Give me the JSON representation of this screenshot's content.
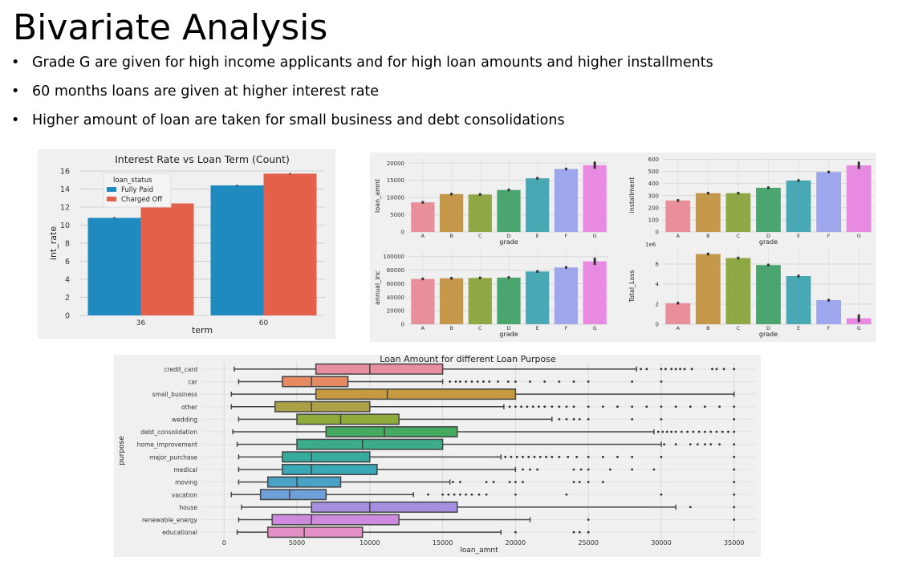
{
  "slide": {
    "title": "Bivariate Analysis",
    "bullets": [
      "Grade G are given for high income applicants and for high loan amounts and higher installments",
      "60 months loans are given at higher interest rate",
      "Higher amount of loan are taken for small business and debt consolidations"
    ],
    "bullet_glyph": "•"
  },
  "chart_data": [
    {
      "id": "interest",
      "type": "bar",
      "title": "Interest Rate vs Loan Term (Count)",
      "xlabel": "term",
      "ylabel": "int_rate",
      "categories": [
        "36",
        "60"
      ],
      "ylim": [
        0,
        16
      ],
      "yticks": [
        0,
        2,
        4,
        6,
        8,
        10,
        12,
        14,
        16
      ],
      "legend_title": "loan_status",
      "legend_position": "top-left",
      "series": [
        {
          "name": "Fully Paid",
          "color": "#1f8ac0",
          "values": [
            10.8,
            14.4
          ]
        },
        {
          "name": "Charged Off",
          "color": "#e5604a",
          "values": [
            12.4,
            15.7
          ]
        }
      ]
    },
    {
      "id": "loan_amnt",
      "type": "bar",
      "xlabel": "grade",
      "ylabel": "loan_amnt",
      "categories": [
        "A",
        "B",
        "C",
        "D",
        "E",
        "F",
        "G"
      ],
      "values": [
        8600,
        11000,
        10900,
        12200,
        15600,
        18300,
        19400
      ],
      "ylim": [
        0,
        21000
      ],
      "yticks": [
        0,
        5000,
        10000,
        15000,
        20000
      ]
    },
    {
      "id": "installment",
      "type": "bar",
      "xlabel": "grade",
      "ylabel": "installment",
      "categories": [
        "A",
        "B",
        "C",
        "D",
        "E",
        "F",
        "G"
      ],
      "values": [
        260,
        320,
        320,
        365,
        425,
        495,
        550
      ],
      "ylim": [
        0,
        610
      ],
      "yticks": [
        0,
        100,
        200,
        300,
        400,
        500,
        600
      ]
    },
    {
      "id": "annual_inc",
      "type": "bar",
      "xlabel": "grade",
      "ylabel": "annual_inc",
      "categories": [
        "A",
        "B",
        "C",
        "D",
        "E",
        "F",
        "G"
      ],
      "values": [
        67000,
        68000,
        68500,
        69000,
        78000,
        84000,
        93000
      ],
      "ylim": [
        0,
        108000
      ],
      "yticks": [
        0,
        20000,
        40000,
        60000,
        80000,
        100000
      ]
    },
    {
      "id": "total_loss",
      "type": "bar",
      "xlabel": "grade",
      "ylabel": "Total_Loss",
      "offset_label": "1e6",
      "categories": [
        "A",
        "B",
        "C",
        "D",
        "E",
        "F",
        "G"
      ],
      "values": [
        2.1,
        7.0,
        6.6,
        5.9,
        4.8,
        2.4,
        0.6
      ],
      "ylim": [
        0,
        7.6
      ],
      "yticks": [
        0,
        2,
        4,
        6
      ],
      "ytick_labels": [
        "0",
        "2",
        "4",
        "6"
      ]
    },
    {
      "id": "purpose",
      "type": "box",
      "title": "Loan Amount for different Loan Purpose",
      "xlabel": "loan_amnt",
      "ylabel": "purpose",
      "xlim": [
        -1500,
        36500
      ],
      "xticks": [
        0,
        5000,
        10000,
        15000,
        20000,
        25000,
        30000,
        35000
      ],
      "categories": [
        "credit_card",
        "car",
        "small_business",
        "other",
        "wedding",
        "debt_consolidation",
        "home_improvement",
        "major_purchase",
        "medical",
        "moving",
        "vacation",
        "house",
        "renewable_energy",
        "educational"
      ],
      "boxes": [
        {
          "min": 700,
          "q1": 6300,
          "median": 10000,
          "q3": 15000,
          "max": 28300,
          "color": "#e78ea0",
          "outliers": [
            28600,
            29000,
            30000,
            30300,
            30700,
            31000,
            31300,
            31600,
            32100,
            33500,
            33800,
            34300,
            35000
          ]
        },
        {
          "min": 1000,
          "q1": 4000,
          "median": 6000,
          "q3": 8500,
          "max": 15000,
          "color": "#e58a63",
          "outliers": [
            15500,
            15900,
            16200,
            16600,
            17000,
            17400,
            17800,
            18200,
            18800,
            19500,
            20000,
            21000,
            22000,
            23000,
            24000,
            25000,
            28000,
            30000
          ]
        },
        {
          "min": 500,
          "q1": 6300,
          "median": 11200,
          "q3": 20000,
          "max": 35000,
          "color": "#c59a3e",
          "outliers": []
        },
        {
          "min": 500,
          "q1": 3500,
          "median": 6000,
          "q3": 10000,
          "max": 19200,
          "color": "#aba046",
          "outliers": [
            19600,
            20000,
            20400,
            20800,
            21200,
            21600,
            22000,
            22500,
            23000,
            23500,
            24000,
            25000,
            26000,
            27000,
            28000,
            29000,
            30000,
            31000,
            32000,
            33000,
            34000,
            35000
          ]
        },
        {
          "min": 1000,
          "q1": 5000,
          "median": 8000,
          "q3": 12000,
          "max": 22500,
          "color": "#8daa3b",
          "outliers": [
            23000,
            23500,
            24000,
            24400,
            25000,
            28000,
            30000,
            35000
          ]
        },
        {
          "min": 600,
          "q1": 7000,
          "median": 11000,
          "q3": 16000,
          "max": 29500,
          "color": "#47a860",
          "outliers": [
            29800,
            30100,
            30400,
            30700,
            31000,
            31400,
            31800,
            32200,
            32600,
            33000,
            33400,
            33800,
            34200,
            34600,
            35000
          ]
        },
        {
          "min": 900,
          "q1": 5000,
          "median": 9500,
          "q3": 15000,
          "max": 30000,
          "color": "#3bab8a",
          "outliers": [
            30200,
            31000,
            32000,
            32500,
            33000,
            33400,
            34000,
            35000
          ]
        },
        {
          "min": 1000,
          "q1": 4000,
          "median": 6000,
          "q3": 10000,
          "max": 19000,
          "color": "#38ab9f",
          "outliers": [
            19300,
            19700,
            20100,
            20500,
            20900,
            21300,
            21700,
            22100,
            22500,
            23000,
            23600,
            24200,
            25000,
            26000,
            27000,
            28000,
            30000,
            35000
          ]
        },
        {
          "min": 1000,
          "q1": 4000,
          "median": 6000,
          "q3": 10500,
          "max": 20000,
          "color": "#3aa8b5",
          "outliers": [
            20500,
            21000,
            21500,
            24000,
            24500,
            25000,
            26500,
            28000,
            29500,
            35000
          ]
        },
        {
          "min": 1000,
          "q1": 3000,
          "median": 5000,
          "q3": 8000,
          "max": 15500,
          "color": "#4aa2c7",
          "outliers": [
            15700,
            16200,
            18000,
            18500,
            19600,
            20000,
            20500,
            24000,
            24400,
            25000,
            26000,
            35000
          ]
        },
        {
          "min": 500,
          "q1": 2500,
          "median": 4500,
          "q3": 7000,
          "max": 13000,
          "color": "#6e9fd8",
          "outliers": [
            14000,
            15000,
            15400,
            15800,
            16200,
            16600,
            17000,
            17500,
            18000,
            20000,
            23500,
            30000,
            35000
          ]
        },
        {
          "min": 1200,
          "q1": 6000,
          "median": 10000,
          "q3": 16000,
          "max": 31000,
          "color": "#a58fe0",
          "outliers": [
            32000,
            35000
          ]
        },
        {
          "min": 1000,
          "q1": 3300,
          "median": 6000,
          "q3": 12000,
          "max": 21000,
          "color": "#cf8ae0",
          "outliers": [
            25000,
            35000
          ]
        },
        {
          "min": 900,
          "q1": 3000,
          "median": 5500,
          "q3": 9500,
          "max": 19000,
          "color": "#e58fc7",
          "outliers": [
            20000,
            24000,
            24400,
            25000
          ]
        }
      ]
    }
  ]
}
